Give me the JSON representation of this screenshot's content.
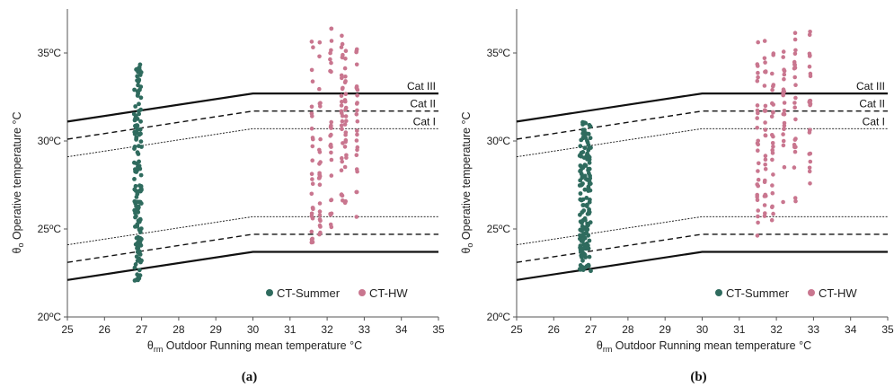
{
  "chart_data": [
    {
      "type": "scatter",
      "panel_label": "(a)",
      "xlabel_symbol": "θ",
      "xlabel_sub": "rm",
      "xlabel_text": "Outdoor Running mean temperature  °C",
      "ylabel_symbol": "θ",
      "ylabel_sub": "o",
      "ylabel_text": "Operative temperature  °C",
      "xlim": [
        25,
        35
      ],
      "ylim": [
        20,
        37.5
      ],
      "xticks": [
        "25",
        "26",
        "27",
        "28",
        "29",
        "30",
        "31",
        "32",
        "33",
        "34",
        "35"
      ],
      "yticks": [
        {
          "v": 20,
          "label": "20ºC"
        },
        {
          "v": 25,
          "label": "25ºC"
        },
        {
          "v": 30,
          "label": "30ºC"
        },
        {
          "v": 35,
          "label": "35ºC"
        }
      ],
      "comfort_lines": [
        {
          "name": "Cat III",
          "style": "solid-thick",
          "upper": [
            [
              25,
              31.1
            ],
            [
              30,
              32.7
            ],
            [
              35,
              32.7
            ]
          ],
          "lower": [
            [
              25,
              22.1
            ],
            [
              30,
              23.7
            ],
            [
              35,
              23.7
            ]
          ]
        },
        {
          "name": "Cat II",
          "style": "dashed",
          "upper": [
            [
              25,
              30.1
            ],
            [
              30,
              31.7
            ],
            [
              35,
              31.7
            ]
          ],
          "lower": [
            [
              25,
              23.1
            ],
            [
              30,
              24.7
            ],
            [
              35,
              24.7
            ]
          ]
        },
        {
          "name": "Cat I",
          "style": "dotted",
          "upper": [
            [
              25,
              29.1
            ],
            [
              30,
              30.7
            ],
            [
              35,
              30.7
            ]
          ],
          "lower": [
            [
              25,
              24.1
            ],
            [
              30,
              25.7
            ],
            [
              35,
              25.7
            ]
          ]
        }
      ],
      "legend": [
        {
          "label": "CT-Summer",
          "color": "#2f6b5e"
        },
        {
          "label": "CT-HW",
          "color": "#c9768f"
        }
      ],
      "series": [
        {
          "name": "CT-Summer",
          "color": "#2f6b5e",
          "x_range": [
            26.8,
            27.0
          ],
          "y_range": [
            22.0,
            34.5
          ],
          "n": 150
        },
        {
          "name": "CT-HW",
          "color": "#c9768f",
          "columns": [
            {
              "x": 31.6,
              "y_range": [
                24.2,
                35.9
              ]
            },
            {
              "x": 31.8,
              "y_range": [
                24.3,
                35.7
              ]
            },
            {
              "x": 32.1,
              "y_range": [
                24.6,
                36.4
              ]
            },
            {
              "x": 32.4,
              "y_range": [
                25.3,
                36.5
              ]
            },
            {
              "x": 32.5,
              "y_range": [
                25.5,
                35.9
              ]
            },
            {
              "x": 32.8,
              "y_range": [
                25.4,
                35.7
              ]
            }
          ]
        }
      ]
    },
    {
      "type": "scatter",
      "panel_label": "(b)",
      "xlabel_symbol": "θ",
      "xlabel_sub": "rm",
      "xlabel_text": "Outdoor Running mean temperature  °C",
      "ylabel_symbol": "θ",
      "ylabel_sub": "o",
      "ylabel_text": "Operative temperature  °C",
      "xlim": [
        25,
        35
      ],
      "ylim": [
        20,
        37.5
      ],
      "xticks": [
        "25",
        "26",
        "27",
        "28",
        "29",
        "30",
        "31",
        "32",
        "33",
        "34",
        "35"
      ],
      "yticks": [
        {
          "v": 20,
          "label": "20ºC"
        },
        {
          "v": 25,
          "label": "25ºC"
        },
        {
          "v": 30,
          "label": "30ºC"
        },
        {
          "v": 35,
          "label": "35ºC"
        }
      ],
      "comfort_lines": [
        {
          "name": "Cat III",
          "style": "solid-thick",
          "upper": [
            [
              25,
              31.1
            ],
            [
              30,
              32.7
            ],
            [
              35,
              32.7
            ]
          ],
          "lower": [
            [
              25,
              22.1
            ],
            [
              30,
              23.7
            ],
            [
              35,
              23.7
            ]
          ]
        },
        {
          "name": "Cat II",
          "style": "dashed",
          "upper": [
            [
              25,
              30.1
            ],
            [
              30,
              31.7
            ],
            [
              35,
              31.7
            ]
          ],
          "lower": [
            [
              25,
              23.1
            ],
            [
              30,
              24.7
            ],
            [
              35,
              24.7
            ]
          ]
        },
        {
          "name": "Cat I",
          "style": "dotted",
          "upper": [
            [
              25,
              29.1
            ],
            [
              30,
              30.7
            ],
            [
              35,
              30.7
            ]
          ],
          "lower": [
            [
              25,
              24.1
            ],
            [
              30,
              25.7
            ],
            [
              35,
              25.7
            ]
          ]
        }
      ],
      "legend": [
        {
          "label": "CT-Summer",
          "color": "#2f6b5e"
        },
        {
          "label": "CT-HW",
          "color": "#c9768f"
        }
      ],
      "series": [
        {
          "name": "CT-Summer",
          "color": "#2f6b5e",
          "x_range": [
            26.7,
            27.0
          ],
          "y_range": [
            22.6,
            31.1
          ],
          "n": 160
        },
        {
          "name": "CT-HW",
          "color": "#c9768f",
          "columns": [
            {
              "x": 31.5,
              "y_range": [
                24.5,
                36.0
              ]
            },
            {
              "x": 31.7,
              "y_range": [
                24.8,
                36.1
              ]
            },
            {
              "x": 31.9,
              "y_range": [
                25.4,
                35.7
              ]
            },
            {
              "x": 32.2,
              "y_range": [
                26.0,
                36.2
              ]
            },
            {
              "x": 32.5,
              "y_range": [
                26.3,
                36.4
              ]
            },
            {
              "x": 32.9,
              "y_range": [
                26.7,
                36.4
              ]
            }
          ]
        }
      ]
    }
  ]
}
